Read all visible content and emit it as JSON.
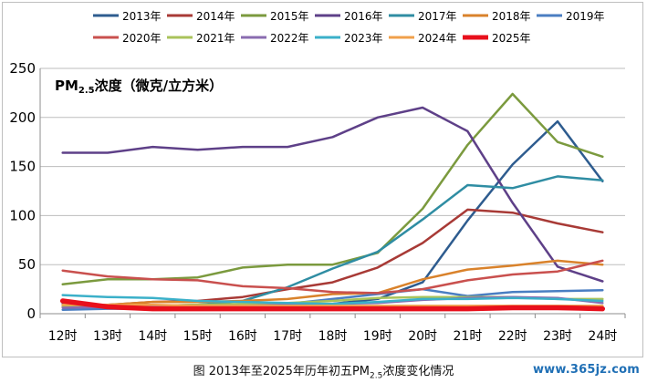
{
  "caption": {
    "prefix": "图 2013年至2025年历年初五PM",
    "sub": "2.5",
    "suffix": "浓度变化情况"
  },
  "watermark": "www.365jz.com",
  "chart_data": {
    "type": "line",
    "title_prefix": "PM",
    "title_sub": "2.5",
    "title_suffix": "浓度（微克/立方米）",
    "categories": [
      "12时",
      "13时",
      "14时",
      "15时",
      "16时",
      "17时",
      "18时",
      "19时",
      "20时",
      "21时",
      "22时",
      "23时",
      "24时"
    ],
    "ylim": [
      0,
      250
    ],
    "yticks": [
      0,
      50,
      100,
      150,
      200,
      250
    ],
    "grid": "horizontal",
    "legend_position": "top",
    "series": [
      {
        "name": "2013年",
        "color": "#2e5c8f",
        "values": [
          10,
          8,
          7,
          6,
          7,
          8,
          10,
          15,
          32,
          95,
          152,
          196,
          135
        ]
      },
      {
        "name": "2014年",
        "color": "#a83a36",
        "values": [
          8,
          9,
          12,
          13,
          17,
          25,
          32,
          47,
          72,
          106,
          103,
          92,
          83
        ]
      },
      {
        "name": "2015年",
        "color": "#7b9a3e",
        "values": [
          30,
          35,
          35,
          37,
          47,
          50,
          50,
          62,
          107,
          172,
          224,
          175,
          160
        ]
      },
      {
        "name": "2016年",
        "color": "#5e4088",
        "values": [
          164,
          164,
          170,
          167,
          170,
          170,
          180,
          200,
          210,
          186,
          113,
          48,
          33
        ]
      },
      {
        "name": "2017年",
        "color": "#2f8da3",
        "values": [
          7,
          7,
          8,
          9,
          13,
          27,
          46,
          63,
          96,
          131,
          128,
          140,
          136
        ]
      },
      {
        "name": "2018年",
        "color": "#d9822b",
        "values": [
          8,
          9,
          12,
          12,
          13,
          15,
          20,
          21,
          35,
          45,
          49,
          54,
          50
        ]
      },
      {
        "name": "2019年",
        "color": "#4a7ec2",
        "values": [
          4,
          5,
          5,
          6,
          8,
          10,
          15,
          20,
          25,
          18,
          22,
          23,
          24
        ]
      },
      {
        "name": "2020年",
        "color": "#c9504e",
        "values": [
          44,
          38,
          35,
          34,
          28,
          26,
          22,
          21,
          25,
          34,
          40,
          43,
          54
        ]
      },
      {
        "name": "2021年",
        "color": "#a9c35b",
        "values": [
          7,
          8,
          8,
          9,
          10,
          11,
          13,
          16,
          17,
          17,
          17,
          15,
          15
        ]
      },
      {
        "name": "2022年",
        "color": "#8a6cb0",
        "values": [
          6,
          7,
          7,
          8,
          8,
          9,
          10,
          11,
          14,
          16,
          17,
          16,
          11
        ]
      },
      {
        "name": "2023年",
        "color": "#3bb0c9",
        "values": [
          19,
          17,
          16,
          13,
          12,
          11,
          10,
          12,
          15,
          15,
          16,
          15,
          13
        ]
      },
      {
        "name": "2024年",
        "color": "#f0a04b",
        "values": [
          9,
          9,
          9,
          8,
          8,
          8,
          8,
          8,
          8,
          8,
          8,
          8,
          8
        ]
      },
      {
        "name": "2025年",
        "color": "#e8101c",
        "values": [
          13,
          7,
          5,
          5,
          5,
          5,
          5,
          5,
          5,
          5,
          6,
          6,
          5
        ]
      }
    ]
  }
}
